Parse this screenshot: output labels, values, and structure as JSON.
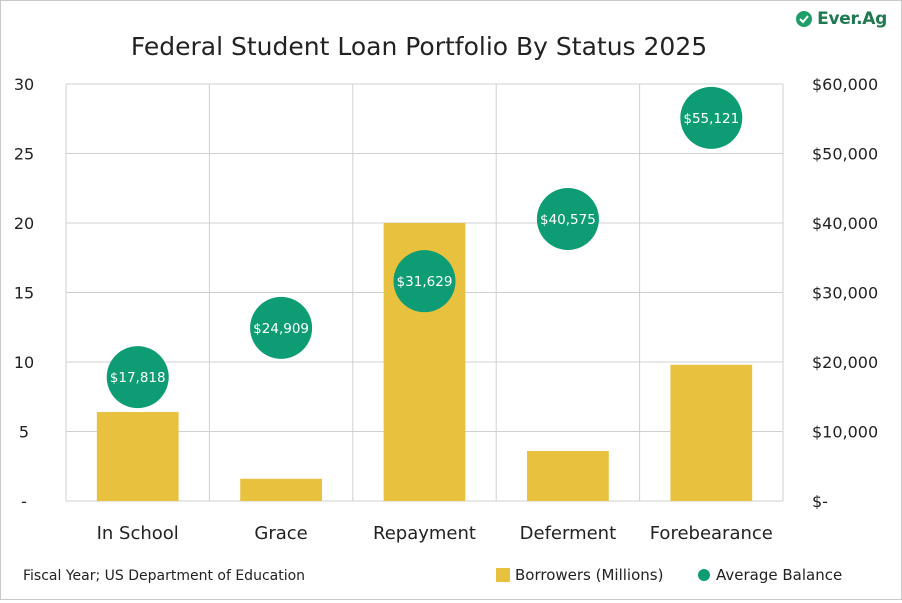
{
  "brand": {
    "logo_text": "Ever.Ag",
    "accent": "#0e9c74"
  },
  "source_note": "Fiscal Year; US Department of Education",
  "chart_data": {
    "type": "bar",
    "title": "Federal Student Loan Portfolio By Status 2025",
    "categories": [
      "In School",
      "Grace",
      "Repayment",
      "Deferment",
      "Forebearance"
    ],
    "series": [
      {
        "name": "Borrowers (Millions)",
        "type": "bar",
        "axis": "left",
        "color": "#e8c13f",
        "values": [
          6.4,
          1.6,
          20.0,
          3.6,
          9.8
        ]
      },
      {
        "name": "Average Balance",
        "type": "scatter",
        "axis": "right",
        "color": "#0e9c74",
        "values": [
          17818,
          24909,
          31629,
          40575,
          55121
        ],
        "labels": [
          "$17,818",
          "$24,909",
          "$31,629",
          "$40,575",
          "$55,121"
        ]
      }
    ],
    "y_left": {
      "min": 0,
      "max": 30,
      "ticks": [
        "-",
        "5",
        "10",
        "15",
        "20",
        "25",
        "30"
      ]
    },
    "y_right": {
      "min": 0,
      "max": 60000,
      "ticks": [
        "$-",
        "$10,000",
        "$20,000",
        "$30,000",
        "$40,000",
        "$50,000",
        "$60,000"
      ]
    },
    "grid": true,
    "legend": "bottom-right"
  }
}
